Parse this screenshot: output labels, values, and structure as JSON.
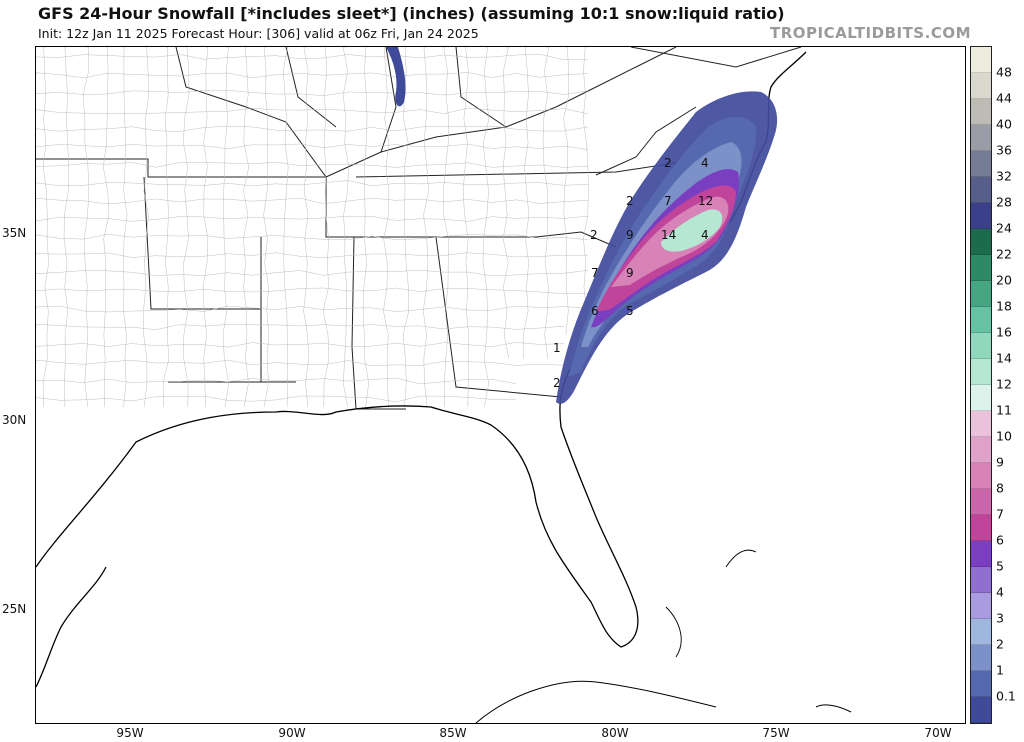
{
  "header": {
    "title": "GFS 24-Hour Snowfall [*includes sleet*] (inches) (assuming 10:1 snow:liquid ratio)",
    "subtitle": "Init: 12z Jan 11 2025   Forecast Hour: [306]   valid at 06z Fri, Jan 24 2025",
    "watermark": "TROPICALTIDBITS.COM"
  },
  "map": {
    "lat_labels": [
      "35N",
      "30N",
      "25N"
    ],
    "lon_labels": [
      "95W",
      "90W",
      "85W",
      "80W",
      "75W",
      "70W"
    ],
    "contour_labels": [
      "2",
      "4",
      "2",
      "7",
      "12",
      "2",
      "9",
      "14",
      "4",
      "7",
      "9",
      "6",
      "5",
      "1",
      "2"
    ]
  },
  "colorbar": {
    "labels": [
      "48",
      "44",
      "40",
      "36",
      "32",
      "28",
      "24",
      "22",
      "20",
      "18",
      "16",
      "14",
      "12",
      "11",
      "10",
      "9",
      "8",
      "7",
      "6",
      "5",
      "4",
      "3",
      "2",
      "1",
      "0.1"
    ],
    "levels": [
      {
        "value": "0.1",
        "color": "#3f4a9b"
      },
      {
        "value": "1",
        "color": "#5668ae"
      },
      {
        "value": "2",
        "color": "#7b91c7"
      },
      {
        "value": "3",
        "color": "#9fb6dd"
      },
      {
        "value": "4",
        "color": "#a99be0"
      },
      {
        "value": "5",
        "color": "#8f6fd0"
      },
      {
        "value": "6",
        "color": "#7a3ec0"
      },
      {
        "value": "7",
        "color": "#c0449a"
      },
      {
        "value": "8",
        "color": "#cc66aa"
      },
      {
        "value": "9",
        "color": "#d783b8"
      },
      {
        "value": "10",
        "color": "#e0a2c9"
      },
      {
        "value": "11",
        "color": "#ebc2db"
      },
      {
        "value": "12",
        "color": "#dcf2ea"
      },
      {
        "value": "14",
        "color": "#b5e7d3"
      },
      {
        "value": "16",
        "color": "#8fd8bd"
      },
      {
        "value": "18",
        "color": "#65c2a2"
      },
      {
        "value": "20",
        "color": "#44a682"
      },
      {
        "value": "22",
        "color": "#2c8a66"
      },
      {
        "value": "24",
        "color": "#1d6b4d"
      },
      {
        "value": "28",
        "color": "#3c3f8a"
      },
      {
        "value": "32",
        "color": "#585e8a"
      },
      {
        "value": "36",
        "color": "#757a95"
      },
      {
        "value": "40",
        "color": "#9a9ca6"
      },
      {
        "value": "44",
        "color": "#bcbcb5"
      },
      {
        "value": "48",
        "color": "#d8d8cc"
      },
      {
        "value": "top",
        "color": "#ececdf"
      }
    ]
  }
}
